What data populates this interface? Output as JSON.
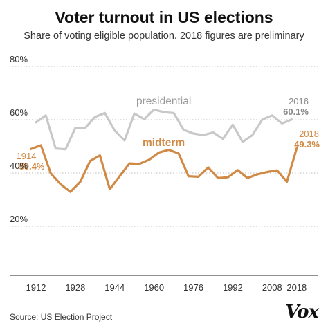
{
  "title": "Voter turnout in US elections",
  "subtitle": "Share of voting eligible population. 2018 figures are preliminary",
  "source": "Source: US Election Project",
  "logo_text": "Vox",
  "colors": {
    "presidential": "#c8c8c8",
    "midterm": "#d08a45",
    "presidential_label": "#9a9a9a",
    "grid": "#bdbdbd",
    "text": "#222222"
  },
  "chart_data": {
    "type": "line",
    "ylim": [
      10,
      80
    ],
    "xlim": [
      1912,
      2018
    ],
    "yticks": [
      20,
      40,
      60,
      80
    ],
    "yticklabels": [
      "20%",
      "40%",
      "60%",
      "80%"
    ],
    "xticks": [
      1912,
      1928,
      1944,
      1960,
      1976,
      1992,
      2008,
      2018
    ],
    "xticklabels": [
      "1912",
      "1928",
      "1944",
      "1960",
      "1976",
      "1992",
      "2008",
      "2018"
    ],
    "grid": "horizontal dotted",
    "series": [
      {
        "name": "presidential",
        "x": [
          1912,
          1916,
          1920,
          1924,
          1928,
          1932,
          1936,
          1940,
          1944,
          1948,
          1952,
          1956,
          1960,
          1964,
          1968,
          1972,
          1976,
          1980,
          1984,
          1988,
          1992,
          1996,
          2000,
          2004,
          2008,
          2012,
          2016
        ],
        "values": [
          59.0,
          61.6,
          49.2,
          48.9,
          56.9,
          56.9,
          61.0,
          62.5,
          55.9,
          52.2,
          62.3,
          60.2,
          63.8,
          62.8,
          62.5,
          56.2,
          54.8,
          54.2,
          55.2,
          52.8,
          58.1,
          51.7,
          54.2,
          60.1,
          61.6,
          58.6,
          60.1
        ]
      },
      {
        "name": "midterm",
        "x": [
          1910,
          1914,
          1918,
          1922,
          1926,
          1930,
          1934,
          1938,
          1942,
          1946,
          1950,
          1954,
          1958,
          1962,
          1966,
          1970,
          1974,
          1978,
          1982,
          1986,
          1990,
          1994,
          1998,
          2002,
          2006,
          2010,
          2014,
          2018
        ],
        "values": [
          49.0,
          50.4,
          39.9,
          35.8,
          32.9,
          36.7,
          44.5,
          46.6,
          33.9,
          38.8,
          43.6,
          43.4,
          45.0,
          47.7,
          48.7,
          47.3,
          38.8,
          38.6,
          42.1,
          38.1,
          38.4,
          41.1,
          38.1,
          39.5,
          40.4,
          41.0,
          36.7,
          49.3
        ]
      }
    ],
    "annotations": {
      "presidential_label": "presidential",
      "midterm_label": "midterm",
      "pres_end_year": "2016",
      "pres_end_value": "60.1%",
      "mid_end_year": "2018",
      "mid_end_value": "49.3%",
      "mid_start_year": "1914",
      "mid_start_value": "50.4%"
    }
  }
}
